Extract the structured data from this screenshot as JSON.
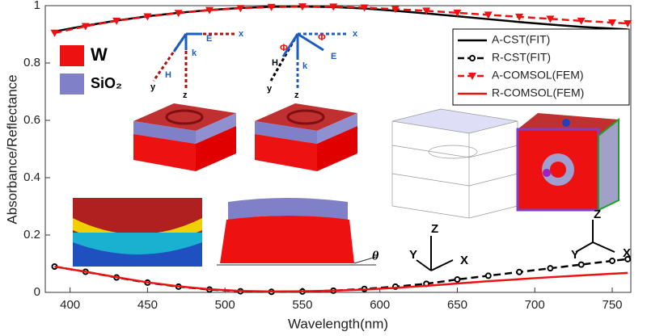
{
  "chart_data": {
    "type": "line",
    "xlabel": "Wavelength(nm)",
    "ylabel": "Absorbance/Reflectance",
    "x": [
      390,
      410,
      430,
      450,
      470,
      490,
      510,
      530,
      550,
      570,
      590,
      610,
      630,
      650,
      670,
      690,
      710,
      730,
      750,
      760
    ],
    "xlim": [
      384,
      762
    ],
    "xticks": [
      400,
      450,
      500,
      550,
      600,
      650,
      700,
      750
    ],
    "ylim": [
      0,
      1
    ],
    "yticks": [
      0,
      0.2,
      0.4,
      0.6,
      0.8,
      1
    ],
    "legend": "upper right",
    "series": [
      {
        "name": "A-CST(FIT)",
        "color": "#000000",
        "dash": false,
        "marker": null,
        "values": [
          0.91,
          0.93,
          0.948,
          0.963,
          0.975,
          0.985,
          0.992,
          0.996,
          0.997,
          0.995,
          0.99,
          0.982,
          0.973,
          0.963,
          0.953,
          0.943,
          0.934,
          0.926,
          0.92,
          0.917
        ]
      },
      {
        "name": "R-CST(FIT)",
        "color": "#000000",
        "dash": true,
        "marker": "o",
        "values": [
          0.09,
          0.072,
          0.052,
          0.034,
          0.02,
          0.01,
          0.004,
          0.002,
          0.003,
          0.006,
          0.012,
          0.02,
          0.03,
          0.045,
          0.058,
          0.071,
          0.084,
          0.097,
          0.11,
          0.116
        ]
      },
      {
        "name": "A-COMSOL(FEM)",
        "color": "#ee1111",
        "dash": true,
        "marker": "v",
        "values": [
          0.905,
          0.928,
          0.947,
          0.962,
          0.974,
          0.984,
          0.991,
          0.995,
          0.997,
          0.996,
          0.993,
          0.988,
          0.982,
          0.975,
          0.968,
          0.961,
          0.954,
          0.947,
          0.941,
          0.938
        ]
      },
      {
        "name": "R-COMSOL(FEM)",
        "color": "#ee1111",
        "dash": false,
        "marker": null,
        "values": [
          0.09,
          0.072,
          0.053,
          0.035,
          0.021,
          0.011,
          0.005,
          0.003,
          0.004,
          0.006,
          0.01,
          0.016,
          0.023,
          0.031,
          0.039,
          0.046,
          0.053,
          0.059,
          0.065,
          0.068
        ]
      }
    ],
    "annotations": [
      "W",
      "SiO₂",
      "H",
      "k",
      "E",
      "x",
      "y",
      "z",
      "H",
      "k",
      "E",
      "x",
      "y",
      "z",
      "Φ",
      "Φ",
      "θ",
      "Z",
      "Y",
      "X",
      "Z",
      "Y",
      "X"
    ]
  }
}
